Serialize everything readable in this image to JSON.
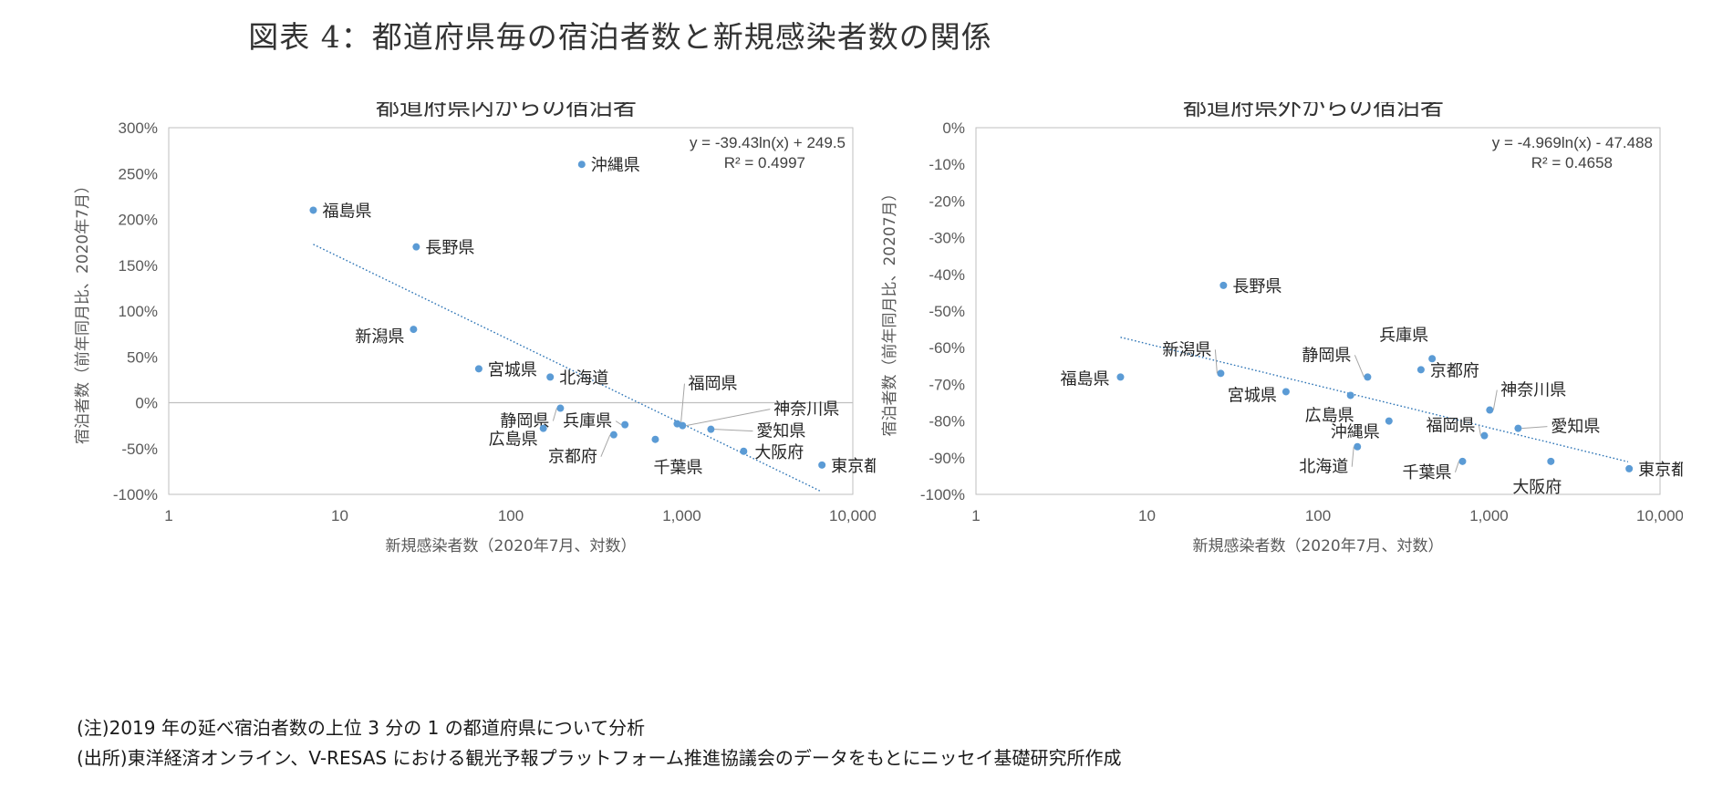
{
  "figure_title": "図表 4：都道府県毎の宿泊者数と新規感染者数の関係",
  "notes": [
    "(注)2019 年の延べ宿泊者数の上位 3 分の 1 の都道府県について分析",
    "(出所)東洋経済オンライン、V-RESAS における観光予報プラットフォーム推進協議会のデータをもとにニッセイ基礎研究所作成"
  ],
  "colors": {
    "point": "#5b9bd5",
    "trend": "#2e75b6",
    "axis": "#bfbfbf",
    "zero": "#bfbfbf"
  },
  "chart_data": [
    {
      "type": "scatter",
      "title": "都道府県内からの宿泊者",
      "xlabel": "新規感染者数（2020年7月、対数）",
      "ylabel": "宿泊者数（前年同月比、2020年7月）",
      "x_scale": "log",
      "xlim": [
        1,
        10000
      ],
      "ylim": [
        -100,
        300
      ],
      "x_ticks": [
        1,
        10,
        100,
        1000,
        10000
      ],
      "x_tick_labels": [
        "1",
        "10",
        "100",
        "1,000",
        "10,000"
      ],
      "y_ticks": [
        300,
        250,
        200,
        150,
        100,
        50,
        0,
        -50,
        -100
      ],
      "y_tick_labels": [
        "300%",
        "250%",
        "200%",
        "150%",
        "100%",
        "50%",
        "0%",
        "-50%",
        "-100%"
      ],
      "zero_line": true,
      "trendline": {
        "type": "logarithmic",
        "equation": "y = -39.43ln(x) + 249.5",
        "r2": "R² = 0.4997",
        "a": -39.43,
        "b": 249.5,
        "x_range": [
          7,
          6500
        ]
      },
      "points": [
        {
          "label": "沖縄県",
          "x": 260,
          "y": 260
        },
        {
          "label": "福島県",
          "x": 7,
          "y": 210
        },
        {
          "label": "長野県",
          "x": 28,
          "y": 170
        },
        {
          "label": "新潟県",
          "x": 27,
          "y": 80
        },
        {
          "label": "宮城県",
          "x": 65,
          "y": 37
        },
        {
          "label": "北海道",
          "x": 170,
          "y": 28
        },
        {
          "label": "静岡県",
          "x": 195,
          "y": -6
        },
        {
          "label": "広島県",
          "x": 155,
          "y": -28
        },
        {
          "label": "兵庫県",
          "x": 465,
          "y": -24
        },
        {
          "label": "京都府",
          "x": 400,
          "y": -35
        },
        {
          "label": "福岡県",
          "x": 940,
          "y": -23
        },
        {
          "label": "神奈川県",
          "x": 1010,
          "y": -25
        },
        {
          "label": "愛知県",
          "x": 1480,
          "y": -29
        },
        {
          "label": "千葉県",
          "x": 700,
          "y": -40
        },
        {
          "label": "大阪府",
          "x": 2300,
          "y": -53
        },
        {
          "label": "東京都",
          "x": 6600,
          "y": -68
        }
      ]
    },
    {
      "type": "scatter",
      "title": "都道府県外からの宿泊者",
      "xlabel": "新規感染者数（2020年7月、対数）",
      "ylabel": "宿泊者数（前年同月比、20207月）",
      "x_scale": "log",
      "xlim": [
        1,
        10000
      ],
      "ylim": [
        -100,
        0
      ],
      "x_ticks": [
        1,
        10,
        100,
        1000,
        10000
      ],
      "x_tick_labels": [
        "1",
        "10",
        "100",
        "1,000",
        "10,000"
      ],
      "y_ticks": [
        0,
        -10,
        -20,
        -30,
        -40,
        -50,
        -60,
        -70,
        -80,
        -90,
        -100
      ],
      "y_tick_labels": [
        "0%",
        "-10%",
        "-20%",
        "-30%",
        "-40%",
        "-50%",
        "-60%",
        "-70%",
        "-80%",
        "-90%",
        "-100%"
      ],
      "zero_line": false,
      "trendline": {
        "type": "logarithmic",
        "equation": "y = -4.969ln(x) - 47.488",
        "r2": "R² = 0.4658",
        "a": -4.969,
        "b": -47.488,
        "x_range": [
          7,
          6500
        ]
      },
      "points": [
        {
          "label": "長野県",
          "x": 28,
          "y": -43
        },
        {
          "label": "兵庫県",
          "x": 465,
          "y": -63
        },
        {
          "label": "京都府",
          "x": 400,
          "y": -66
        },
        {
          "label": "静岡県",
          "x": 195,
          "y": -68
        },
        {
          "label": "新潟県",
          "x": 27,
          "y": -67
        },
        {
          "label": "福島県",
          "x": 7,
          "y": -68
        },
        {
          "label": "宮城県",
          "x": 65,
          "y": -72
        },
        {
          "label": "広島県",
          "x": 155,
          "y": -73
        },
        {
          "label": "神奈川県",
          "x": 1010,
          "y": -77
        },
        {
          "label": "沖縄県",
          "x": 260,
          "y": -80
        },
        {
          "label": "福岡県",
          "x": 940,
          "y": -84
        },
        {
          "label": "愛知県",
          "x": 1480,
          "y": -82
        },
        {
          "label": "北海道",
          "x": 170,
          "y": -87
        },
        {
          "label": "千葉県",
          "x": 700,
          "y": -91
        },
        {
          "label": "大阪府",
          "x": 2300,
          "y": -91
        },
        {
          "label": "東京都",
          "x": 6600,
          "y": -93
        }
      ]
    }
  ]
}
